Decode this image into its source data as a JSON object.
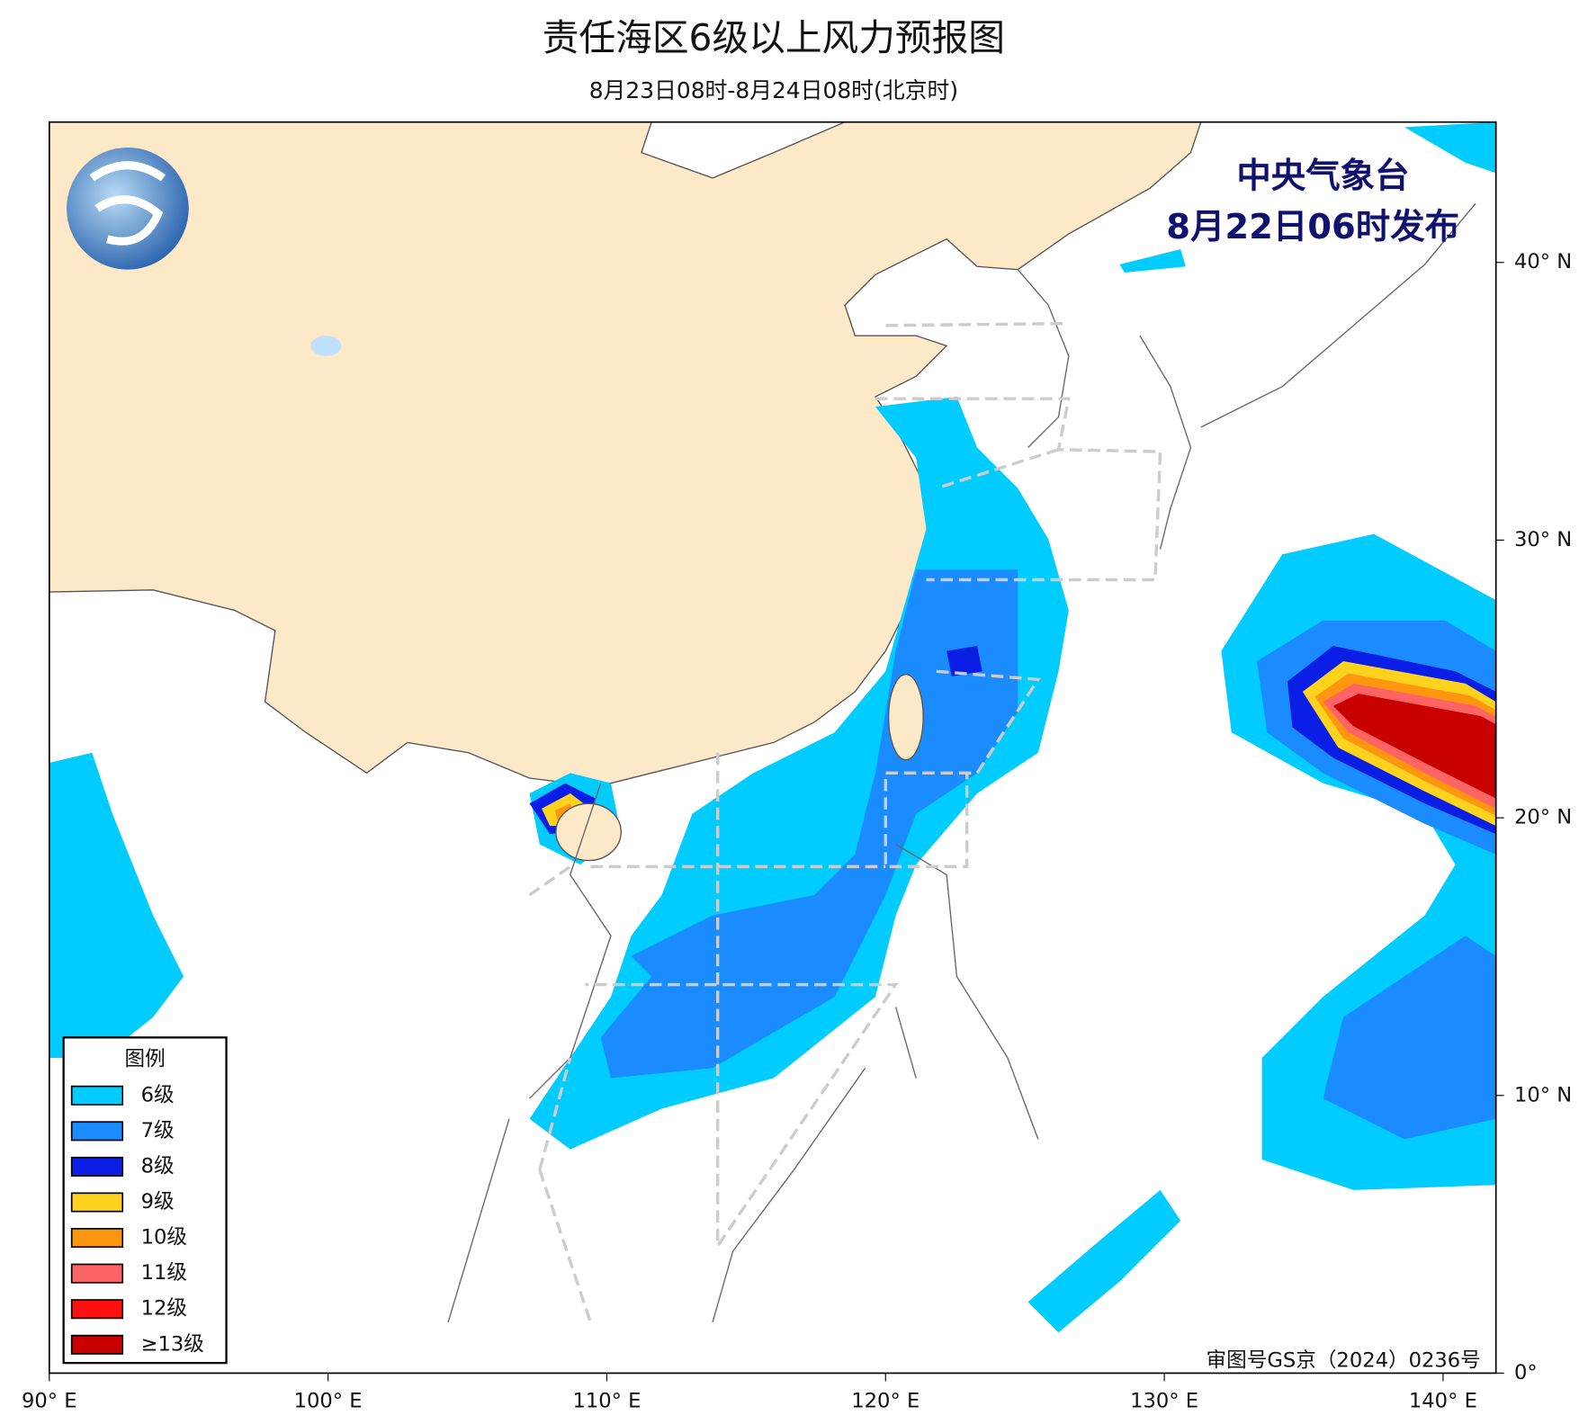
{
  "header": {
    "title": "责任海区6级以上风力预报图",
    "subtitle": "8月23日08时-8月24日08时(北京时)"
  },
  "issuer": {
    "name": "中央气象台",
    "time": "8月22日06时发布"
  },
  "map": {
    "lon_ticks": [
      {
        "value": 90,
        "label": "90° E"
      },
      {
        "value": 100,
        "label": "100° E"
      },
      {
        "value": 110,
        "label": "110° E"
      },
      {
        "value": 120,
        "label": "120° E"
      },
      {
        "value": 130,
        "label": "130° E"
      },
      {
        "value": 140,
        "label": "140° E"
      }
    ],
    "lat_ticks": [
      {
        "value": 0,
        "label": "0°"
      },
      {
        "value": 10,
        "label": "10° N"
      },
      {
        "value": 20,
        "label": "20° N"
      },
      {
        "value": 30,
        "label": "30° N"
      },
      {
        "value": 40,
        "label": "40° N"
      }
    ]
  },
  "legend": {
    "title": "图例",
    "items": [
      {
        "label": "6级",
        "color": "#00ccff"
      },
      {
        "label": "7级",
        "color": "#1a8cff"
      },
      {
        "label": "8级",
        "color": "#0a1ee6"
      },
      {
        "label": "9级",
        "color": "#ffd21e"
      },
      {
        "label": "10级",
        "color": "#ff9610"
      },
      {
        "label": "11级",
        "color": "#ff6464"
      },
      {
        "label": "12级",
        "color": "#ff1010"
      },
      {
        "label": "≥13级",
        "color": "#c80000"
      }
    ]
  },
  "footer": {
    "approval": "审图号GS京（2024）0236号"
  }
}
